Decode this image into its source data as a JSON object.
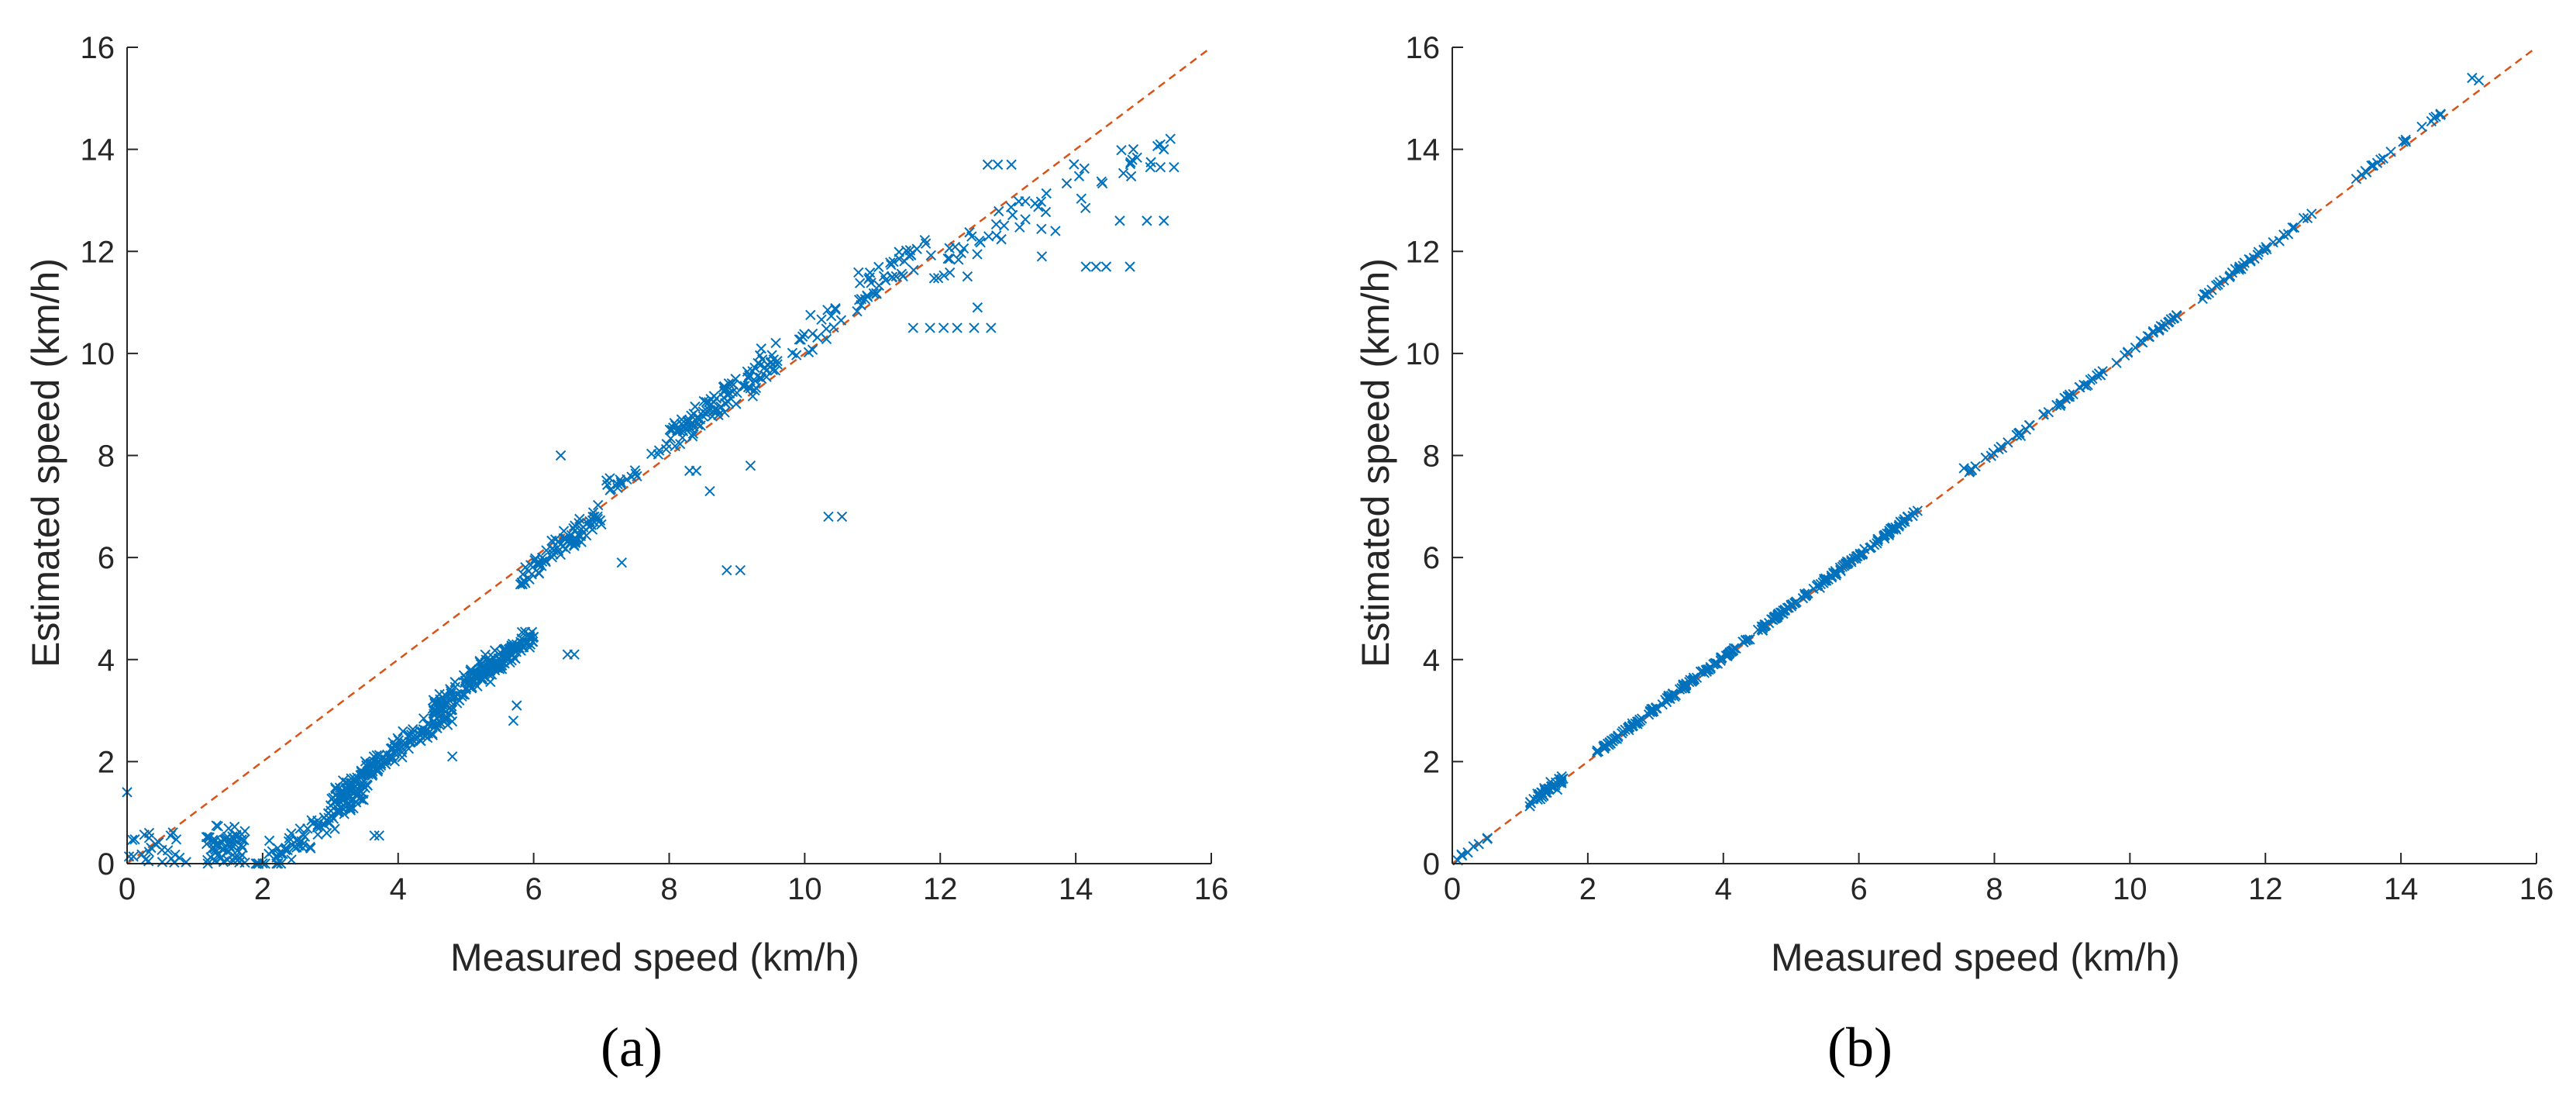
{
  "figure": {
    "colors": {
      "markers": "#0072BD",
      "reference_line": "#D95319",
      "axis": "#262626",
      "background": "#ffffff"
    }
  },
  "chart_data": [
    {
      "type": "scatter",
      "panel_label": "(a)",
      "title": "",
      "xlabel": "Measured speed (km/h)",
      "ylabel": "Estimated speed (km/h)",
      "xlim": [
        0,
        16
      ],
      "ylim": [
        0,
        16
      ],
      "xticks": [
        "0",
        "2",
        "4",
        "6",
        "8",
        "10",
        "12",
        "14",
        "16"
      ],
      "yticks": [
        "0",
        "2",
        "4",
        "6",
        "8",
        "10",
        "12",
        "14",
        "16"
      ],
      "grid": false,
      "marker": "x",
      "reference_line": {
        "x": [
          0,
          16
        ],
        "y": [
          0,
          16
        ],
        "style": "dashed"
      },
      "generator": {
        "seed": 11,
        "clusters": [
          {
            "n": 25,
            "x": [
              0.0,
              0.9
            ],
            "y": [
              0.0,
              0.65
            ]
          },
          {
            "n": 60,
            "x": [
              1.15,
              1.75
            ],
            "y": [
              0.0,
              0.75
            ]
          },
          {
            "n": 90,
            "x": [
              1.9,
              3.5
            ],
            "mode": "linear",
            "slope": 0.98,
            "intercept": -2.05,
            "spread": 0.45
          },
          {
            "n": 170,
            "x": [
              3.0,
              4.8
            ],
            "mode": "linear",
            "slope": 0.99,
            "intercept": -1.75,
            "spread": 0.35
          },
          {
            "n": 190,
            "x": [
              4.5,
              6.0
            ],
            "mode": "linear",
            "slope": 0.97,
            "intercept": -1.35,
            "spread": 0.35
          },
          {
            "n": 80,
            "x": [
              5.8,
              7.0
            ],
            "mode": "linear",
            "slope": 1.0,
            "intercept": -0.2,
            "spread": 0.35
          },
          {
            "n": 20,
            "x": [
              7.0,
              8.0
            ],
            "mode": "linear",
            "slope": 1.0,
            "intercept": 0.2,
            "spread": 0.3
          },
          {
            "n": 110,
            "x": [
              8.0,
              9.6
            ],
            "mode": "linear",
            "slope": 1.0,
            "intercept": 0.3,
            "spread": 0.45
          },
          {
            "n": 60,
            "x": [
              9.8,
              11.8
            ],
            "mode": "linear",
            "slope": 1.0,
            "intercept": 0.3,
            "spread": 0.55
          },
          {
            "n": 55,
            "x": [
              11.8,
              15.4
            ],
            "mode": "linear",
            "slope": 0.7,
            "intercept": 3.4,
            "spread": 0.7
          }
        ],
        "points": [
          [
            0.0,
            1.4
          ],
          [
            2.1,
            0.45
          ],
          [
            3.65,
            0.55
          ],
          [
            3.72,
            0.55
          ],
          [
            4.8,
            2.1
          ],
          [
            5.7,
            2.8
          ],
          [
            5.75,
            3.1
          ],
          [
            6.5,
            4.1
          ],
          [
            6.6,
            4.1
          ],
          [
            8.85,
            5.75
          ],
          [
            9.05,
            5.75
          ],
          [
            10.35,
            6.8
          ],
          [
            10.55,
            6.8
          ],
          [
            7.3,
            5.9
          ],
          [
            8.3,
            7.7
          ],
          [
            8.4,
            7.7
          ],
          [
            8.6,
            7.3
          ],
          [
            9.2,
            7.8
          ],
          [
            6.4,
            8.0
          ],
          [
            11.6,
            10.5
          ],
          [
            11.85,
            10.5
          ],
          [
            12.05,
            10.5
          ],
          [
            12.25,
            10.5
          ],
          [
            12.5,
            10.5
          ],
          [
            12.75,
            10.5
          ],
          [
            12.55,
            10.9
          ],
          [
            13.5,
            11.9
          ],
          [
            13.7,
            12.4
          ],
          [
            14.15,
            11.7
          ],
          [
            14.3,
            11.7
          ],
          [
            14.45,
            11.7
          ],
          [
            14.8,
            11.7
          ],
          [
            15.05,
            12.6
          ],
          [
            14.65,
            12.6
          ],
          [
            15.3,
            12.6
          ],
          [
            15.1,
            13.65
          ],
          [
            15.25,
            13.65
          ],
          [
            15.45,
            13.65
          ],
          [
            15.3,
            14.0
          ],
          [
            14.85,
            14.0
          ],
          [
            12.7,
            13.7
          ],
          [
            12.85,
            13.7
          ],
          [
            13.05,
            13.7
          ]
        ]
      }
    },
    {
      "type": "scatter",
      "panel_label": "(b)",
      "title": "",
      "xlabel": "Measured speed (km/h)",
      "ylabel": "Estimated speed (km/h)",
      "xlim": [
        0,
        16
      ],
      "ylim": [
        0,
        16
      ],
      "xticks": [
        "0",
        "2",
        "4",
        "6",
        "8",
        "10",
        "12",
        "14",
        "16"
      ],
      "yticks": [
        "0",
        "2",
        "4",
        "6",
        "8",
        "10",
        "12",
        "14",
        "16"
      ],
      "grid": false,
      "marker": "x",
      "reference_line": {
        "x": [
          0,
          16
        ],
        "y": [
          0,
          16
        ],
        "style": "dashed"
      },
      "generator": {
        "seed": 29,
        "clusters": [
          {
            "n": 8,
            "x": [
              0.0,
              0.55
            ],
            "mode": "linear",
            "slope": 1.0,
            "intercept": 0.0,
            "spread": 0.08
          },
          {
            "n": 35,
            "x": [
              1.1,
              1.65
            ],
            "mode": "linear",
            "slope": 1.0,
            "intercept": 0.03,
            "spread": 0.12
          },
          {
            "n": 260,
            "x": [
              2.1,
              6.9
            ],
            "mode": "linear",
            "slope": 1.0,
            "intercept": 0.05,
            "spread": 0.07
          },
          {
            "n": 70,
            "x": [
              7.6,
              10.7
            ],
            "mode": "linear",
            "slope": 1.0,
            "intercept": 0.05,
            "spread": 0.07
          },
          {
            "n": 40,
            "x": [
              11.0,
              12.7
            ],
            "mode": "linear",
            "slope": 1.0,
            "intercept": 0.05,
            "spread": 0.07
          },
          {
            "n": 22,
            "x": [
              13.3,
              14.6
            ],
            "mode": "linear",
            "slope": 1.0,
            "intercept": 0.1,
            "spread": 0.08
          }
        ],
        "points": [
          [
            15.05,
            15.4
          ],
          [
            15.15,
            15.35
          ],
          [
            7.55,
            7.75
          ],
          [
            1.5,
            1.5
          ],
          [
            1.45,
            1.6
          ],
          [
            1.55,
            1.45
          ]
        ]
      }
    }
  ]
}
